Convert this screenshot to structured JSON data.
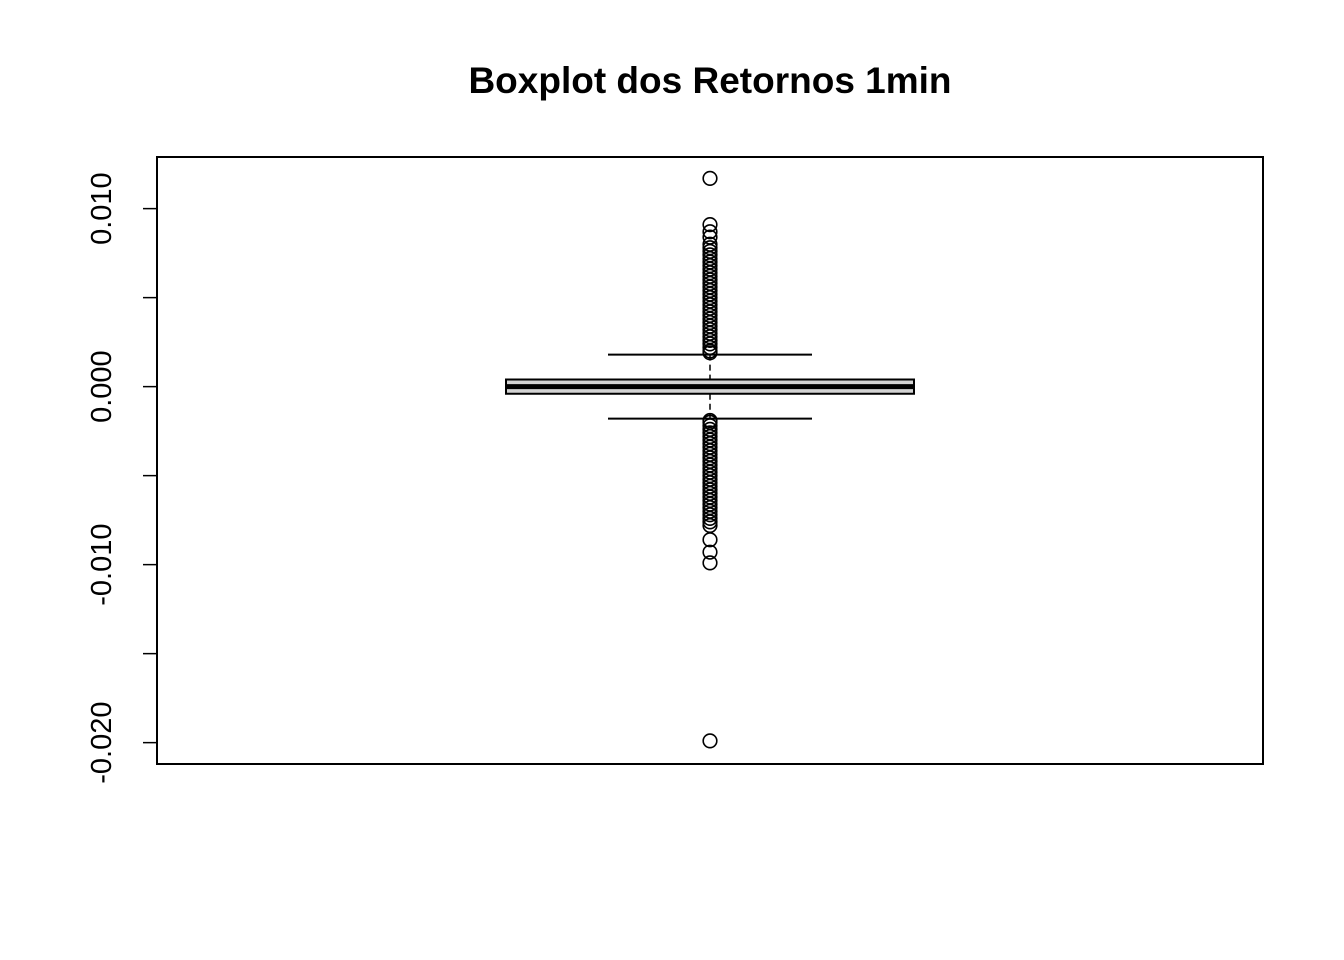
{
  "chart_data": {
    "type": "boxplot",
    "title": "Boxplot dos Retornos 1min",
    "xlabel": "",
    "ylabel": "",
    "ylim": [
      -0.0212,
      0.0129
    ],
    "y_ticks": [
      -0.02,
      -0.015,
      -0.01,
      -0.005,
      0.0,
      0.005,
      0.01
    ],
    "y_tick_labels": [
      "-0.020",
      "",
      "-0.010",
      "",
      "0.000",
      "",
      "0.010"
    ],
    "grid": false,
    "box": {
      "q1": -0.0004,
      "median": 0.0,
      "q3": 0.0004,
      "whisker_low": -0.0018,
      "whisker_high": 0.0018,
      "fill": "#d3d3d3"
    },
    "outliers": [
      0.0117,
      0.0091,
      0.0087,
      0.0084,
      0.008,
      0.0078,
      0.0076,
      0.0074,
      0.0072,
      0.007,
      0.0068,
      0.0066,
      0.0064,
      0.0062,
      0.006,
      0.0058,
      0.0056,
      0.0054,
      0.0052,
      0.005,
      0.0048,
      0.0046,
      0.0044,
      0.0042,
      0.004,
      0.0038,
      0.0036,
      0.0034,
      0.0032,
      0.003,
      0.0028,
      0.0026,
      0.0024,
      0.0022,
      0.002,
      0.0019,
      -0.0019,
      -0.002,
      -0.0022,
      -0.0024,
      -0.0026,
      -0.0028,
      -0.003,
      -0.0032,
      -0.0034,
      -0.0036,
      -0.0038,
      -0.004,
      -0.0042,
      -0.0044,
      -0.0046,
      -0.0048,
      -0.005,
      -0.0052,
      -0.0054,
      -0.0056,
      -0.0058,
      -0.006,
      -0.0062,
      -0.0064,
      -0.0066,
      -0.0068,
      -0.007,
      -0.0072,
      -0.0074,
      -0.0076,
      -0.0078,
      -0.0086,
      -0.0093,
      -0.0099,
      -0.0199
    ]
  }
}
